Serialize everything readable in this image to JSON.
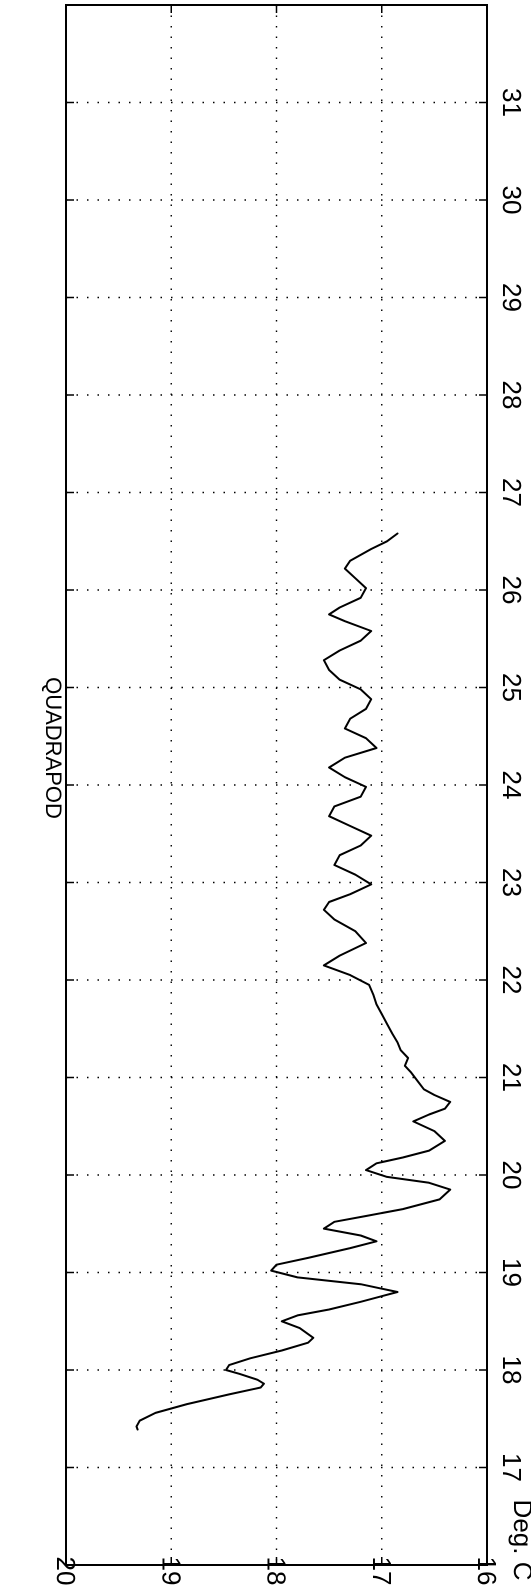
{
  "chart_data": {
    "type": "line",
    "title": "QUADRAPOD",
    "xlabel": "",
    "ylabel": "Deg. C",
    "xlim": [
      16,
      32
    ],
    "ylim": [
      16,
      20
    ],
    "orientation": "rotated-90-cw",
    "grid": true,
    "x_ticks": [
      17,
      18,
      19,
      20,
      21,
      22,
      23,
      24,
      25,
      26,
      27,
      28,
      29,
      30,
      31
    ],
    "y_ticks": [
      16,
      17,
      18,
      19,
      20
    ],
    "x_tick_labels": [
      "17",
      "18",
      "19",
      "20",
      "21",
      "22",
      "23",
      "24",
      "25",
      "26",
      "27",
      "28",
      "29",
      "30",
      "31"
    ],
    "y_tick_labels": [
      "16",
      "17",
      "18",
      "19",
      "20"
    ],
    "series": [
      {
        "x": [
          17.39,
          17.42,
          17.48,
          17.56,
          17.65,
          17.75,
          17.82,
          17.86,
          17.9,
          17.96,
          18.0,
          18.05,
          18.12,
          18.2,
          18.28,
          18.33,
          18.43,
          18.5,
          18.56,
          18.62,
          18.7,
          18.8,
          18.88,
          18.95,
          19.02,
          19.08,
          19.15,
          19.25,
          19.32,
          19.38,
          19.45,
          19.52,
          19.58,
          19.65,
          19.75,
          19.85,
          19.92,
          19.98,
          20.05,
          20.12,
          20.18,
          20.25,
          20.35,
          20.45,
          20.55,
          20.62,
          20.68,
          20.75,
          20.82,
          20.88,
          20.95,
          21.05,
          21.12,
          21.2,
          21.28,
          21.36,
          21.45,
          21.55,
          21.65,
          21.75,
          21.85,
          21.95,
          22.05,
          22.15,
          22.25,
          22.38,
          22.5,
          22.62,
          22.72,
          22.8,
          22.88,
          22.98,
          23.08,
          23.18,
          23.28,
          23.38,
          23.48,
          23.58,
          23.68,
          23.78,
          23.88,
          23.98,
          24.08,
          24.18,
          24.28,
          24.38,
          24.48,
          24.58,
          24.68,
          24.78,
          24.88,
          24.98,
          25.08,
          25.18,
          25.28,
          25.38,
          25.48,
          25.58,
          25.68,
          25.75,
          25.82,
          25.92,
          26.02,
          26.12,
          26.22,
          26.3,
          26.36,
          26.42,
          26.5,
          26.58
        ],
        "y": [
          19.32,
          19.33,
          19.3,
          19.15,
          18.85,
          18.45,
          18.15,
          18.12,
          18.18,
          18.35,
          18.48,
          18.45,
          18.25,
          17.95,
          17.7,
          17.65,
          17.78,
          17.95,
          17.8,
          17.5,
          17.2,
          16.85,
          17.2,
          17.8,
          18.05,
          18.0,
          17.7,
          17.3,
          17.05,
          17.2,
          17.55,
          17.45,
          17.15,
          16.8,
          16.45,
          16.35,
          16.55,
          16.95,
          17.15,
          17.05,
          16.8,
          16.55,
          16.4,
          16.5,
          16.7,
          16.55,
          16.4,
          16.35,
          16.5,
          16.6,
          16.65,
          16.72,
          16.78,
          16.75,
          16.82,
          16.85,
          16.9,
          16.95,
          17.0,
          17.05,
          17.08,
          17.12,
          17.3,
          17.55,
          17.4,
          17.15,
          17.25,
          17.45,
          17.55,
          17.5,
          17.3,
          17.1,
          17.25,
          17.45,
          17.4,
          17.2,
          17.1,
          17.3,
          17.5,
          17.45,
          17.2,
          17.15,
          17.35,
          17.5,
          17.35,
          17.05,
          17.15,
          17.35,
          17.3,
          17.15,
          17.1,
          17.2,
          17.4,
          17.5,
          17.55,
          17.4,
          17.2,
          17.1,
          17.35,
          17.5,
          17.4,
          17.2,
          17.15,
          17.25,
          17.35,
          17.3,
          17.2,
          17.1,
          16.95,
          16.85
        ]
      }
    ]
  }
}
